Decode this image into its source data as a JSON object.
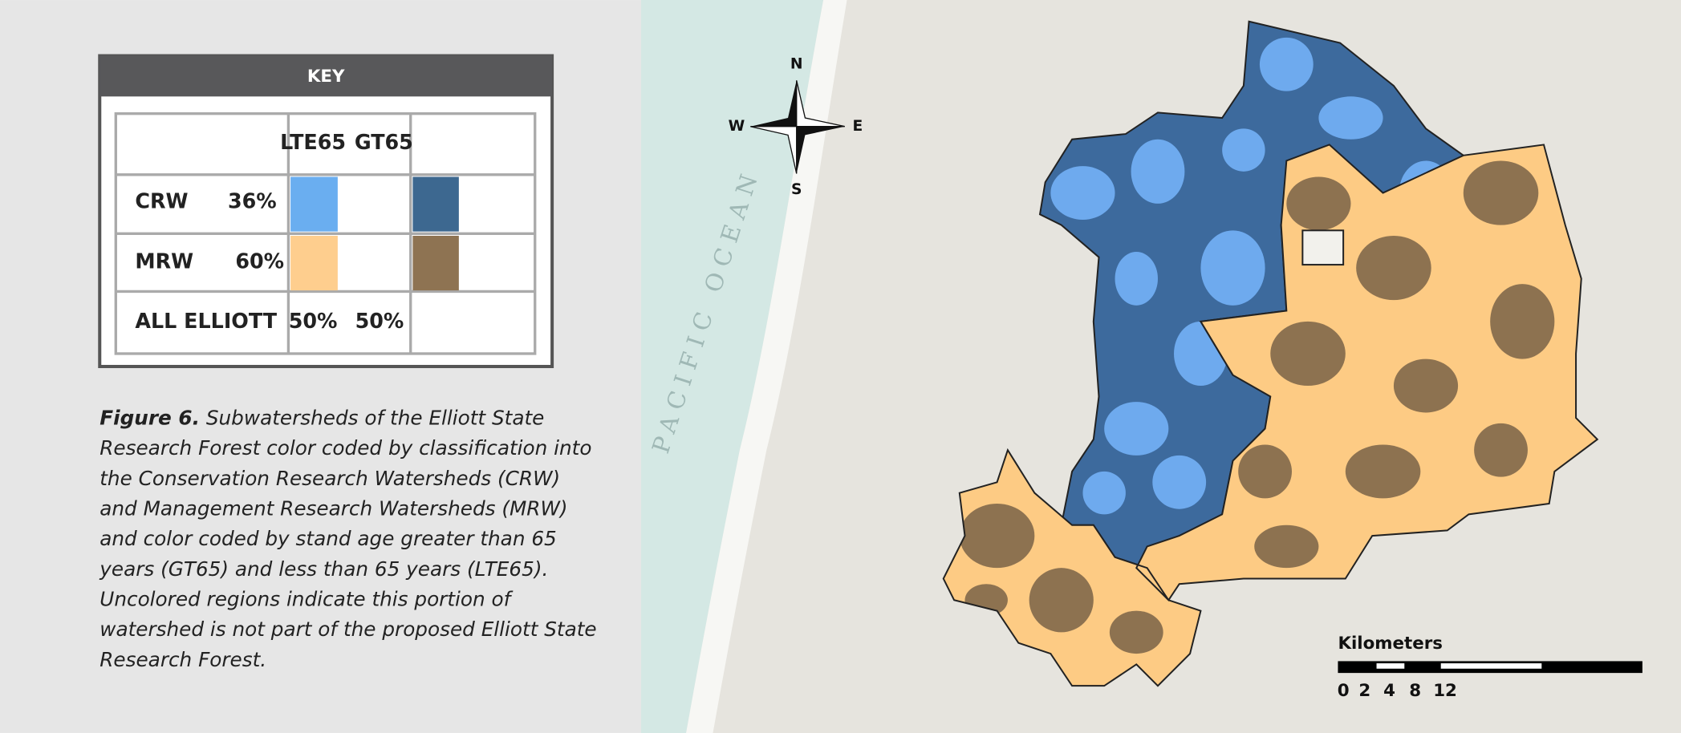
{
  "key": {
    "title": "KEY",
    "columns": [
      "LTE65",
      "GT65"
    ],
    "rows": [
      {
        "label": "CRW",
        "share": "36%"
      },
      {
        "label": "MRW",
        "share": "60%"
      },
      {
        "label": "ALL ELLIOTT",
        "values": [
          "50%",
          "50%"
        ]
      }
    ]
  },
  "caption": {
    "label": "Figure 6.",
    "lines": [
      "Subwatersheds of the Elliott State",
      "Research Forest color coded by classification into",
      "the Conservation Research Watersheds (CRW)",
      "and Management Research Watersheds (MRW)",
      "and color coded by stand age greater than 65",
      "years (GT65) and less than 65 years (LTE65).",
      "Uncolored regions indicate this portion of",
      "watershed is not part of the proposed Elliott State",
      "Research Forest."
    ]
  },
  "map": {
    "ocean_label": "PACIFIC OCEAN",
    "compass": {
      "north": "N",
      "south": "S",
      "west": "W",
      "east": "E"
    },
    "scale": {
      "title": "Kilometers",
      "ticks": [
        "0",
        "2",
        "4",
        "8",
        "12"
      ]
    }
  }
}
